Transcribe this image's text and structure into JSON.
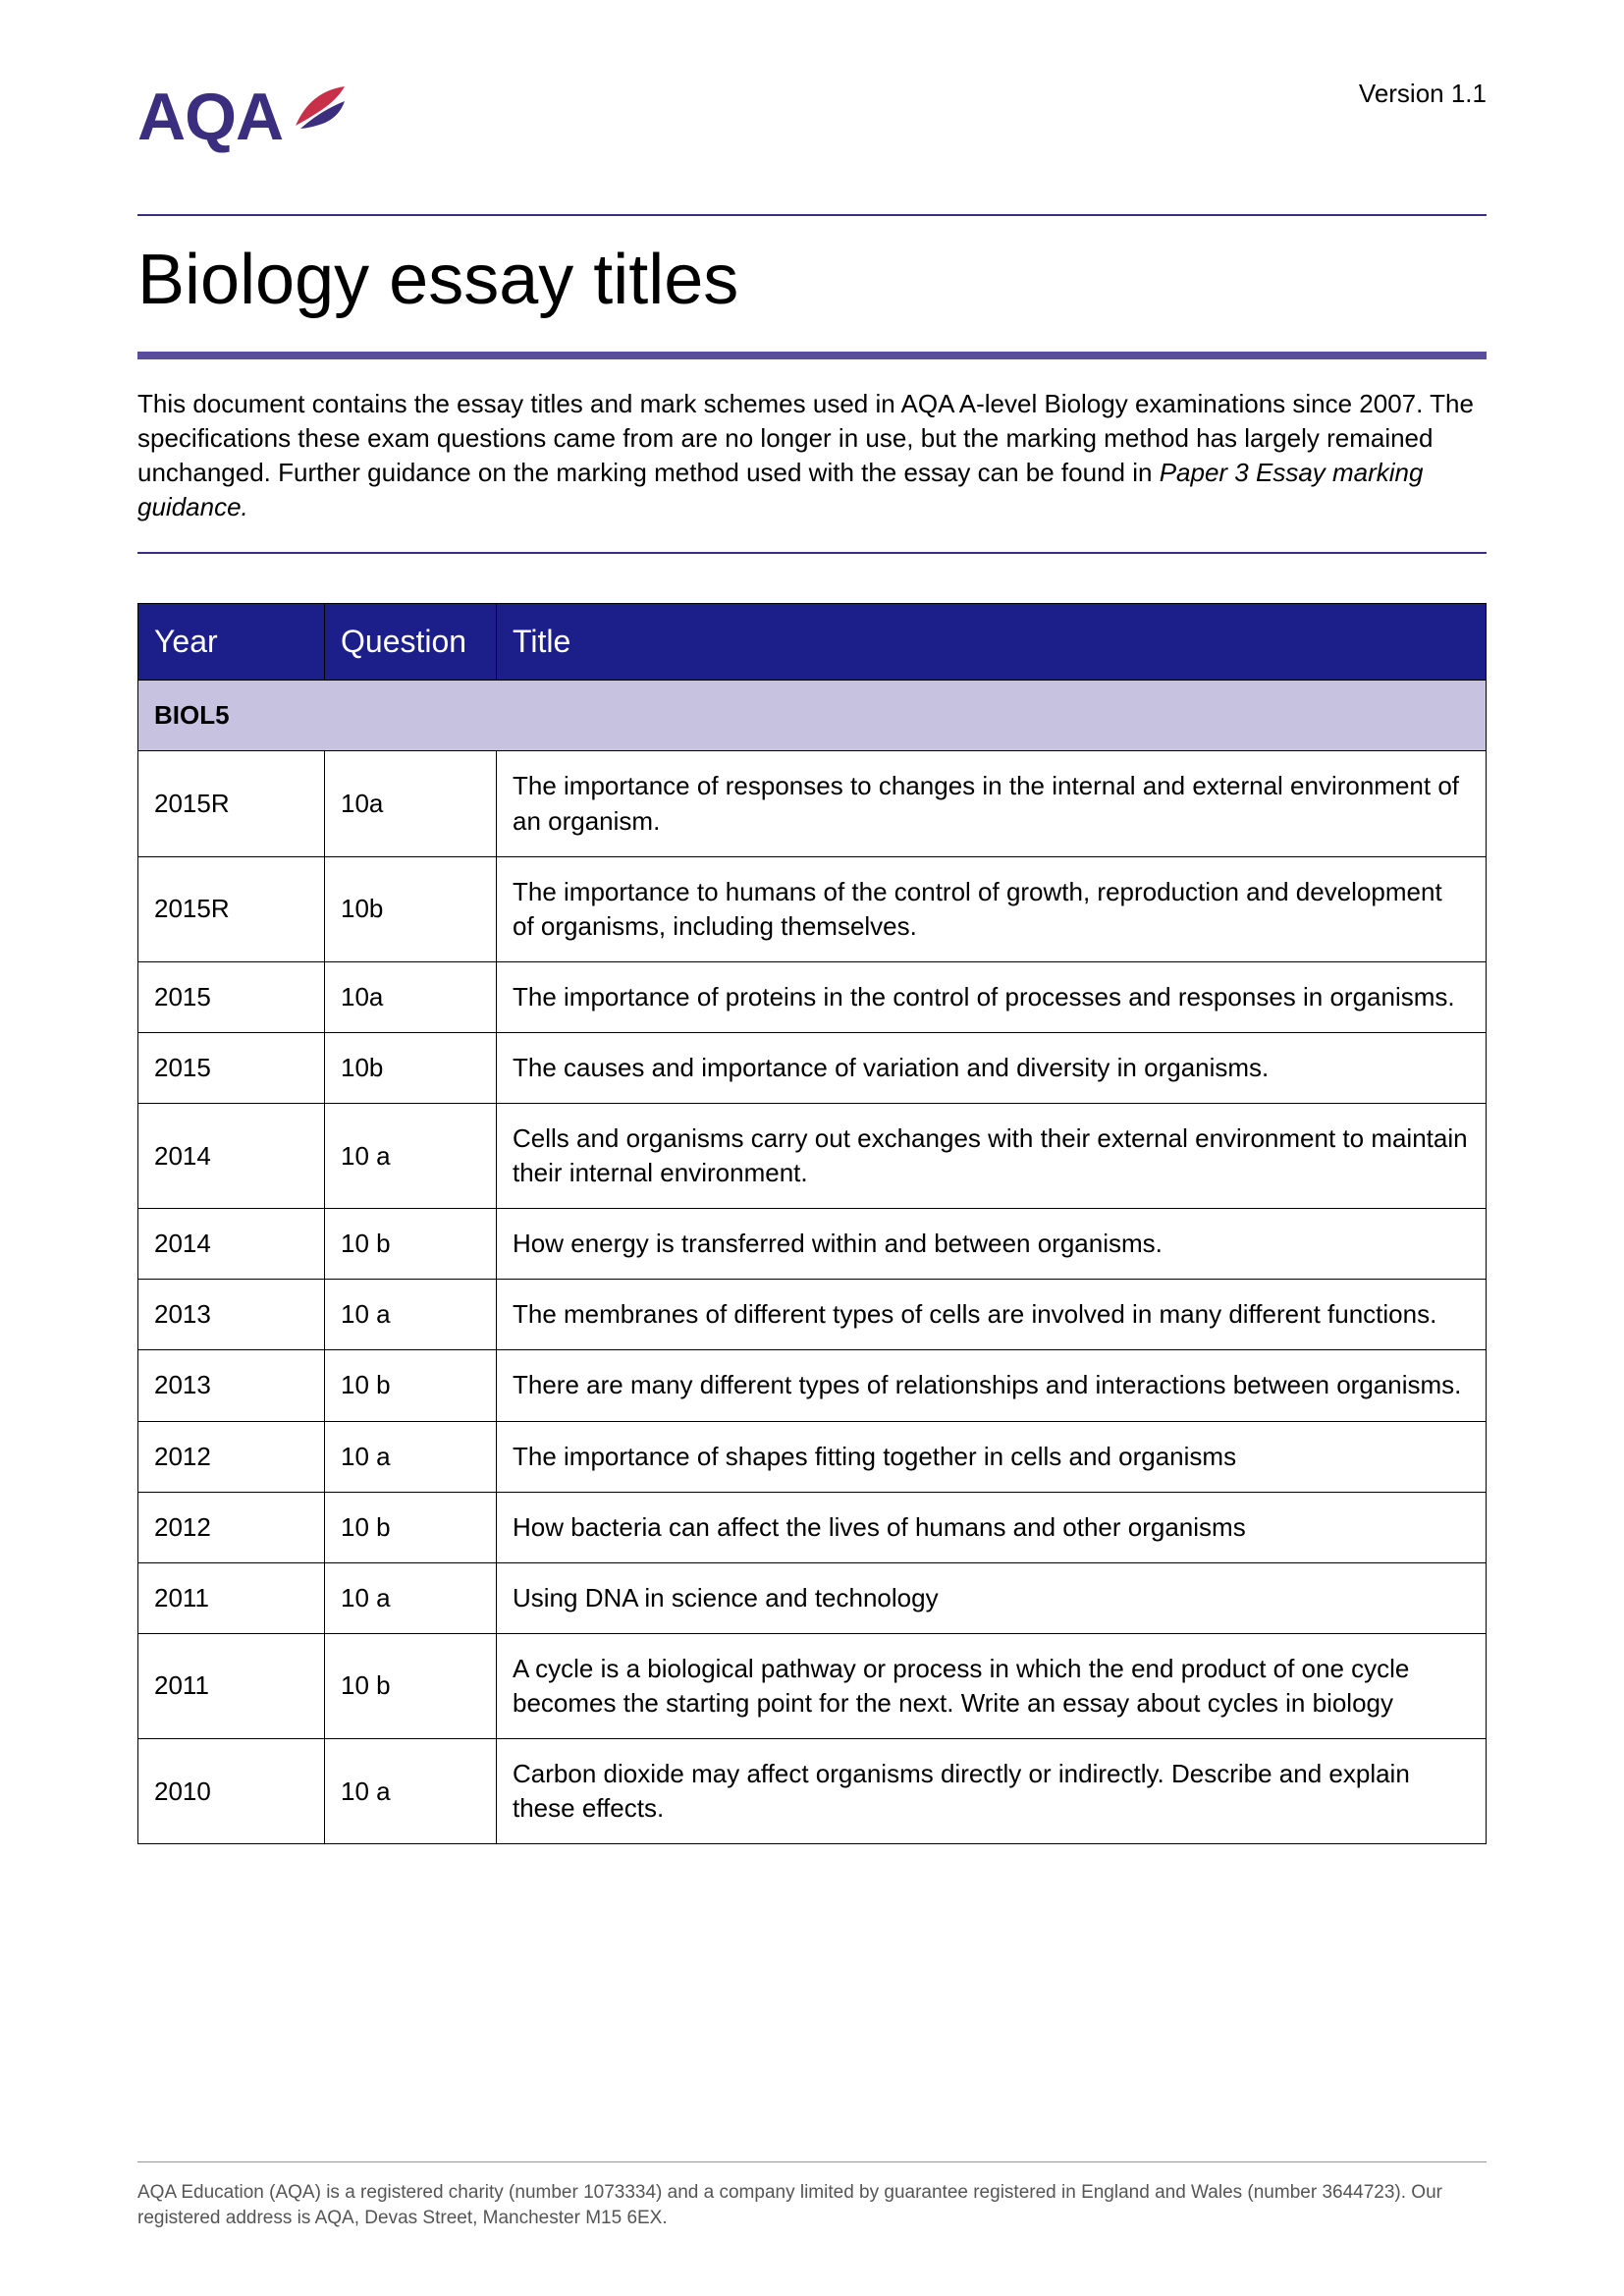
{
  "version": "Version 1.1",
  "logo_text": "AQA",
  "title": "Biology essay titles",
  "intro_text": "This document contains the essay titles and mark schemes used in AQA A-level Biology examinations since 2007. The specifications these exam questions came from are no longer in use, but the marking method has largely remained unchanged. Further guidance on the marking method used with the essay can be found in ",
  "intro_italic": "Paper 3 Essay marking guidance.",
  "table": {
    "headers": {
      "year": "Year",
      "question": "Question",
      "title": "Title"
    },
    "section": "BIOL5",
    "rows": [
      {
        "year": "2015R",
        "question": "10a",
        "title": "The importance of responses to changes in the internal and external environment of an organism."
      },
      {
        "year": "2015R",
        "question": "10b",
        "title": "The importance to humans of the control of growth, reproduction and development of organisms, including themselves."
      },
      {
        "year": "2015",
        "question": "10a",
        "title": "The importance of proteins in the control of processes and responses in organisms."
      },
      {
        "year": "2015",
        "question": "10b",
        "title": "The causes and importance of variation and diversity in organisms."
      },
      {
        "year": "2014",
        "question": "10 a",
        "title": "Cells and organisms carry out exchanges with their external environment to maintain their internal environment."
      },
      {
        "year": "2014",
        "question": "10 b",
        "title": "How energy is transferred within and between organisms."
      },
      {
        "year": "2013",
        "question": "10 a",
        "title": "The membranes of different types of cells are involved in many different functions."
      },
      {
        "year": "2013",
        "question": "10 b",
        "title": "There are many different types of relationships and interactions between organisms."
      },
      {
        "year": "2012",
        "question": "10 a",
        "title": "The importance of shapes fitting together in cells and organisms"
      },
      {
        "year": "2012",
        "question": "10 b",
        "title": "How bacteria can affect the lives of humans and other organisms"
      },
      {
        "year": "2011",
        "question": "10 a",
        "title": "Using DNA in science and technology"
      },
      {
        "year": "2011",
        "question": "10 b",
        "title": "A cycle is a biological pathway or process in which the end product of one cycle becomes the starting point for the next. Write an essay about cycles in biology"
      },
      {
        "year": "2010",
        "question": "10 a",
        "title": "Carbon dioxide may affect organisms directly or indirectly. Describe and explain these effects."
      }
    ]
  },
  "footer": "AQA Education (AQA) is a registered charity (number 1073334) and a company limited by guarantee registered in England and Wales (number 3644723). Our registered address is AQA, Devas Street, Manchester M15 6EX.",
  "colors": {
    "logo_purple": "#3b2e7e",
    "thick_rule_purple": "#5b4d9e",
    "table_header_bg": "#1c1e8a",
    "section_row_bg": "#c7c2e0",
    "logo_red": "#c8304a"
  }
}
